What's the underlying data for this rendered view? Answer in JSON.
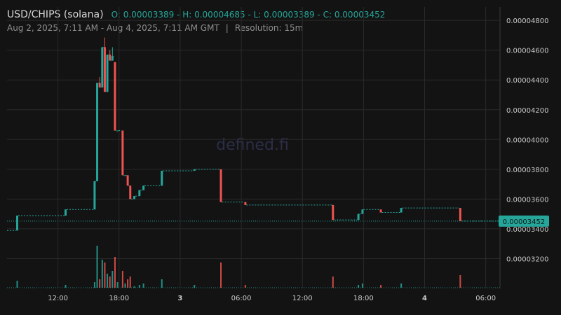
{
  "header": {
    "pair": "USD/CHIPS (solana)",
    "ohlc": "O: 0.00003389 - H: 0.00004685 - L: 0.00003389 - C: 0.00003452",
    "range": "Aug 2, 2025, 7:11 AM - Aug 4, 2025, 7:11 AM GMT",
    "separator": "|",
    "resolution": "Resolution: 15m"
  },
  "watermark": "defined.fi",
  "colors": {
    "up": "#26a69a",
    "down": "#ef5350",
    "grid": "#2a2a2a",
    "last_price": "#26a69a"
  },
  "chart_data": {
    "type": "candlestick",
    "y_ticks": [
      3.2e-05,
      3.4e-05,
      3.6e-05,
      3.8e-05,
      4e-05,
      4.2e-05,
      4.4e-05,
      4.6e-05,
      4.8e-05
    ],
    "y_tick_labels": [
      "0.00003200",
      "0.00003400",
      "0.00003600",
      "0.00003800",
      "0.00004000",
      "0.00004200",
      "0.00004400",
      "0.00004600",
      "0.00004800"
    ],
    "ylim": [
      3e-05,
      4.89e-05
    ],
    "x_ticks": [
      {
        "t": 12,
        "label": "12:00",
        "bold": false
      },
      {
        "t": 18,
        "label": "18:00",
        "bold": false
      },
      {
        "t": 24,
        "label": "3",
        "bold": true
      },
      {
        "t": 30,
        "label": "06:00",
        "bold": false
      },
      {
        "t": 36,
        "label": "12:00",
        "bold": false
      },
      {
        "t": 42,
        "label": "18:00",
        "bold": false
      },
      {
        "t": 48,
        "label": "4",
        "bold": true
      },
      {
        "t": 54,
        "label": "06:00",
        "bold": false
      }
    ],
    "xlim": [
      7.0,
      55.4
    ],
    "last_price": 3.452e-05,
    "last_price_label": "0.00003452",
    "candles": [
      {
        "t": 8.0,
        "o": 3.389e-05,
        "h": 3.489e-05,
        "l": 3.389e-05,
        "c": 3.489e-05,
        "v": 5
      },
      {
        "t": 12.75,
        "o": 3.489e-05,
        "h": 3.53e-05,
        "l": 3.489e-05,
        "c": 3.53e-05,
        "v": 2
      },
      {
        "t": 15.6,
        "o": 3.53e-05,
        "h": 3.72e-05,
        "l": 3.53e-05,
        "c": 3.72e-05,
        "v": 4
      },
      {
        "t": 15.85,
        "o": 3.72e-05,
        "h": 4.38e-05,
        "l": 3.72e-05,
        "c": 4.38e-05,
        "v": 30
      },
      {
        "t": 16.1,
        "o": 4.38e-05,
        "h": 4.42e-05,
        "l": 4.35e-05,
        "c": 4.35e-05,
        "v": 6
      },
      {
        "t": 16.35,
        "o": 4.35e-05,
        "h": 4.62e-05,
        "l": 4.35e-05,
        "c": 4.62e-05,
        "v": 20
      },
      {
        "t": 16.6,
        "o": 4.62e-05,
        "h": 4.685e-05,
        "l": 4.32e-05,
        "c": 4.32e-05,
        "v": 18
      },
      {
        "t": 16.85,
        "o": 4.32e-05,
        "h": 4.57e-05,
        "l": 4.32e-05,
        "c": 4.57e-05,
        "v": 10
      },
      {
        "t": 17.1,
        "o": 4.57e-05,
        "h": 4.6e-05,
        "l": 4.53e-05,
        "c": 4.53e-05,
        "v": 8
      },
      {
        "t": 17.35,
        "o": 4.53e-05,
        "h": 4.62e-05,
        "l": 4.53e-05,
        "c": 4.56e-05,
        "v": 12
      },
      {
        "t": 17.6,
        "o": 4.52e-05,
        "h": 4.52e-05,
        "l": 4.06e-05,
        "c": 4.06e-05,
        "v": 22
      },
      {
        "t": 17.85,
        "o": 4.06e-05,
        "h": 4.06e-05,
        "l": 4.06e-05,
        "c": 4.06e-05,
        "v": 4
      },
      {
        "t": 18.35,
        "o": 4.06e-05,
        "h": 4.06e-05,
        "l": 3.76e-05,
        "c": 3.76e-05,
        "v": 12
      },
      {
        "t": 18.6,
        "o": 3.76e-05,
        "h": 3.76e-05,
        "l": 3.76e-05,
        "c": 3.76e-05,
        "v": 3
      },
      {
        "t": 18.85,
        "o": 3.76e-05,
        "h": 3.76e-05,
        "l": 3.69e-05,
        "c": 3.69e-05,
        "v": 6
      },
      {
        "t": 19.1,
        "o": 3.69e-05,
        "h": 3.69e-05,
        "l": 3.6e-05,
        "c": 3.6e-05,
        "v": 8
      },
      {
        "t": 19.5,
        "o": 3.6e-05,
        "h": 3.62e-05,
        "l": 3.6e-05,
        "c": 3.62e-05,
        "v": 1
      },
      {
        "t": 20.0,
        "o": 3.62e-05,
        "h": 3.66e-05,
        "l": 3.62e-05,
        "c": 3.66e-05,
        "v": 2
      },
      {
        "t": 20.4,
        "o": 3.66e-05,
        "h": 3.69e-05,
        "l": 3.66e-05,
        "c": 3.69e-05,
        "v": 3
      },
      {
        "t": 22.2,
        "o": 3.69e-05,
        "h": 3.79e-05,
        "l": 3.69e-05,
        "c": 3.79e-05,
        "v": 6
      },
      {
        "t": 25.4,
        "o": 3.79e-05,
        "h": 3.8e-05,
        "l": 3.79e-05,
        "c": 3.8e-05,
        "v": 2
      },
      {
        "t": 28.0,
        "o": 3.8e-05,
        "h": 3.8e-05,
        "l": 3.58e-05,
        "c": 3.58e-05,
        "v": 18
      },
      {
        "t": 30.4,
        "o": 3.58e-05,
        "h": 3.58e-05,
        "l": 3.56e-05,
        "c": 3.56e-05,
        "v": 2
      },
      {
        "t": 39.0,
        "o": 3.56e-05,
        "h": 3.56e-05,
        "l": 3.46e-05,
        "c": 3.46e-05,
        "v": 8
      },
      {
        "t": 41.5,
        "o": 3.46e-05,
        "h": 3.5e-05,
        "l": 3.46e-05,
        "c": 3.5e-05,
        "v": 2
      },
      {
        "t": 41.9,
        "o": 3.5e-05,
        "h": 3.53e-05,
        "l": 3.5e-05,
        "c": 3.53e-05,
        "v": 3
      },
      {
        "t": 43.7,
        "o": 3.53e-05,
        "h": 3.53e-05,
        "l": 3.51e-05,
        "c": 3.51e-05,
        "v": 2
      },
      {
        "t": 45.7,
        "o": 3.51e-05,
        "h": 3.54e-05,
        "l": 3.51e-05,
        "c": 3.54e-05,
        "v": 3
      },
      {
        "t": 51.5,
        "o": 3.54e-05,
        "h": 3.54e-05,
        "l": 3.452e-05,
        "c": 3.452e-05,
        "v": 9
      }
    ]
  }
}
